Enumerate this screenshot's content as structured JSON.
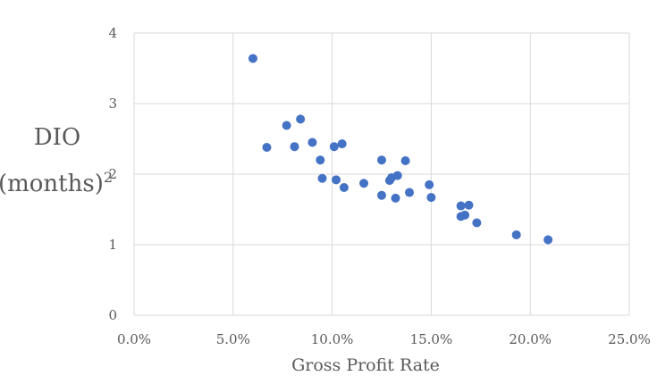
{
  "chart_data": {
    "type": "scatter",
    "xlabel": "Gross Profit Rate",
    "ylabel_line1": "DIO",
    "ylabel_line2": "(months)",
    "ylabel_superscript": "2",
    "xlim": [
      0,
      0.25
    ],
    "ylim": [
      0,
      4
    ],
    "x_ticks": [
      0,
      0.05,
      0.1,
      0.15,
      0.2,
      0.25
    ],
    "x_tick_labels": [
      "0.0%",
      "5.0%",
      "10.0%",
      "15.0%",
      "20.0%",
      "25.0%"
    ],
    "y_ticks": [
      0,
      1,
      2,
      3,
      4
    ],
    "y_tick_labels": [
      "0",
      "1",
      "2",
      "3",
      "4"
    ],
    "grid": true,
    "marker_color": "#4472c4",
    "points": [
      {
        "x": 0.06,
        "y": 3.64
      },
      {
        "x": 0.067,
        "y": 2.38
      },
      {
        "x": 0.077,
        "y": 2.69
      },
      {
        "x": 0.081,
        "y": 2.39
      },
      {
        "x": 0.084,
        "y": 2.78
      },
      {
        "x": 0.09,
        "y": 2.45
      },
      {
        "x": 0.094,
        "y": 2.2
      },
      {
        "x": 0.095,
        "y": 1.94
      },
      {
        "x": 0.101,
        "y": 2.39
      },
      {
        "x": 0.102,
        "y": 1.92
      },
      {
        "x": 0.105,
        "y": 2.43
      },
      {
        "x": 0.106,
        "y": 1.81
      },
      {
        "x": 0.116,
        "y": 1.87
      },
      {
        "x": 0.125,
        "y": 2.2
      },
      {
        "x": 0.125,
        "y": 1.7
      },
      {
        "x": 0.129,
        "y": 1.91
      },
      {
        "x": 0.13,
        "y": 1.95
      },
      {
        "x": 0.132,
        "y": 1.66
      },
      {
        "x": 0.133,
        "y": 1.98
      },
      {
        "x": 0.137,
        "y": 2.19
      },
      {
        "x": 0.139,
        "y": 1.74
      },
      {
        "x": 0.149,
        "y": 1.85
      },
      {
        "x": 0.15,
        "y": 1.67
      },
      {
        "x": 0.165,
        "y": 1.55
      },
      {
        "x": 0.165,
        "y": 1.4
      },
      {
        "x": 0.167,
        "y": 1.42
      },
      {
        "x": 0.169,
        "y": 1.56
      },
      {
        "x": 0.173,
        "y": 1.31
      },
      {
        "x": 0.193,
        "y": 1.14
      },
      {
        "x": 0.209,
        "y": 1.07
      }
    ]
  }
}
